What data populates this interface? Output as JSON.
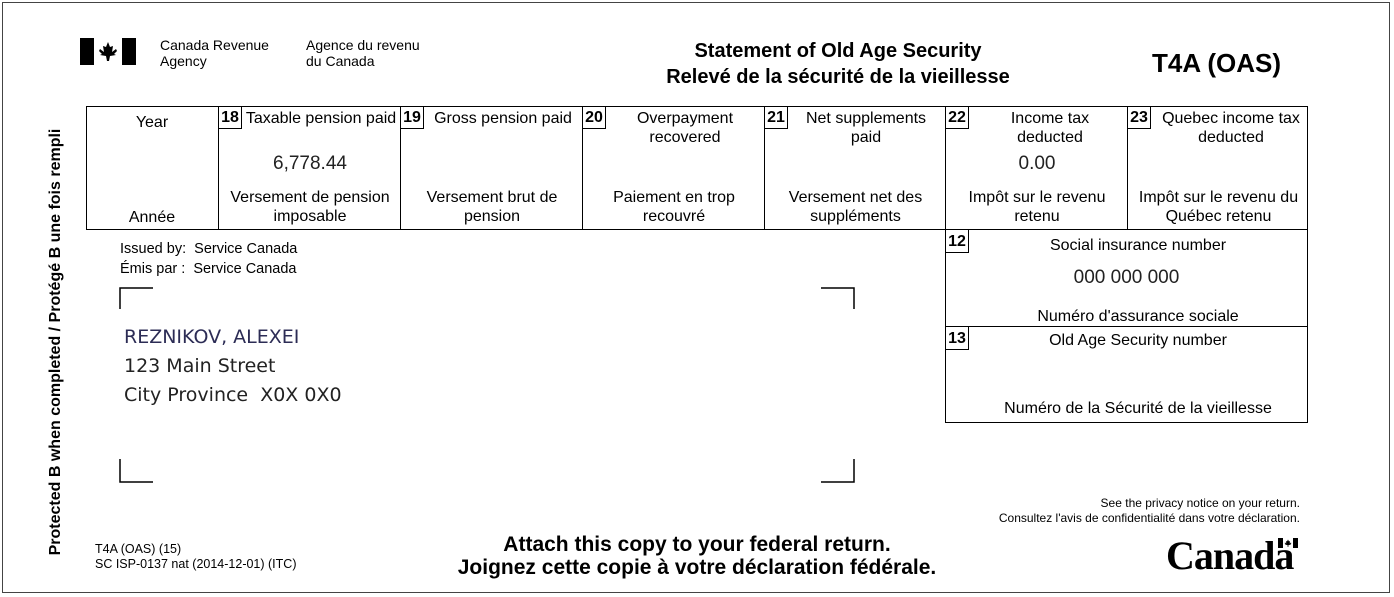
{
  "header": {
    "agency_en_1": "Canada Revenue",
    "agency_en_2": "Agency",
    "agency_fr_1": "Agence du revenu",
    "agency_fr_2": "du Canada",
    "title_en": "Statement of Old Age Security",
    "title_fr": "Relevé de la sécurité de la vieillesse",
    "form_code": "T4A (OAS)"
  },
  "side_text": "Protected B when completed / Protégé B une fois rempli",
  "year": {
    "label_en": "Year",
    "label_fr": "Année",
    "value": ""
  },
  "boxes": [
    {
      "num": "18",
      "label_en": "Taxable pension paid",
      "label_fr": "Versement de pension imposable",
      "value": "6,778.44"
    },
    {
      "num": "19",
      "label_en": "Gross pension paid",
      "label_fr": "Versement brut de pension",
      "value": ""
    },
    {
      "num": "20",
      "label_en": "Overpayment recovered",
      "label_fr": "Paiement en trop recouvré",
      "value": ""
    },
    {
      "num": "21",
      "label_en": "Net supplements paid",
      "label_fr": "Versement net des suppléments",
      "value": ""
    },
    {
      "num": "22",
      "label_en": "Income tax deducted",
      "label_fr": "Impôt sur le revenu retenu",
      "value": "0.00"
    },
    {
      "num": "23",
      "label_en": "Quebec income tax deducted",
      "label_fr": "Impôt sur le revenu du Québec retenu",
      "value": ""
    }
  ],
  "issuer": {
    "line_en": "Issued by:  Service Canada",
    "line_fr": "Émis par :  Service Canada"
  },
  "recipient": {
    "name": "REZNIKOV, ALEXEI",
    "street": "123 Main Street",
    "city": "City Province  X0X 0X0"
  },
  "sin": {
    "num": "12",
    "label_en": "Social insurance number",
    "label_fr": "Numéro d'assurance sociale",
    "value": "000 000 000"
  },
  "oas_number": {
    "num": "13",
    "label_en": "Old Age Security number",
    "label_fr": "Numéro de la Sécurité de la vieillesse",
    "value": ""
  },
  "privacy": {
    "en": "See the privacy notice on your return.",
    "fr": "Consultez l'avis de confidentialité dans votre déclaration."
  },
  "footer": {
    "form_id": "T4A (OAS) (15)",
    "form_ref": "SC ISP-0137 nat (2014-12-01) (ITC)",
    "attach_en": "Attach this copy to your federal return.",
    "attach_fr": "Joignez cette copie à votre déclaration fédérale.",
    "wordmark": "Canada"
  }
}
